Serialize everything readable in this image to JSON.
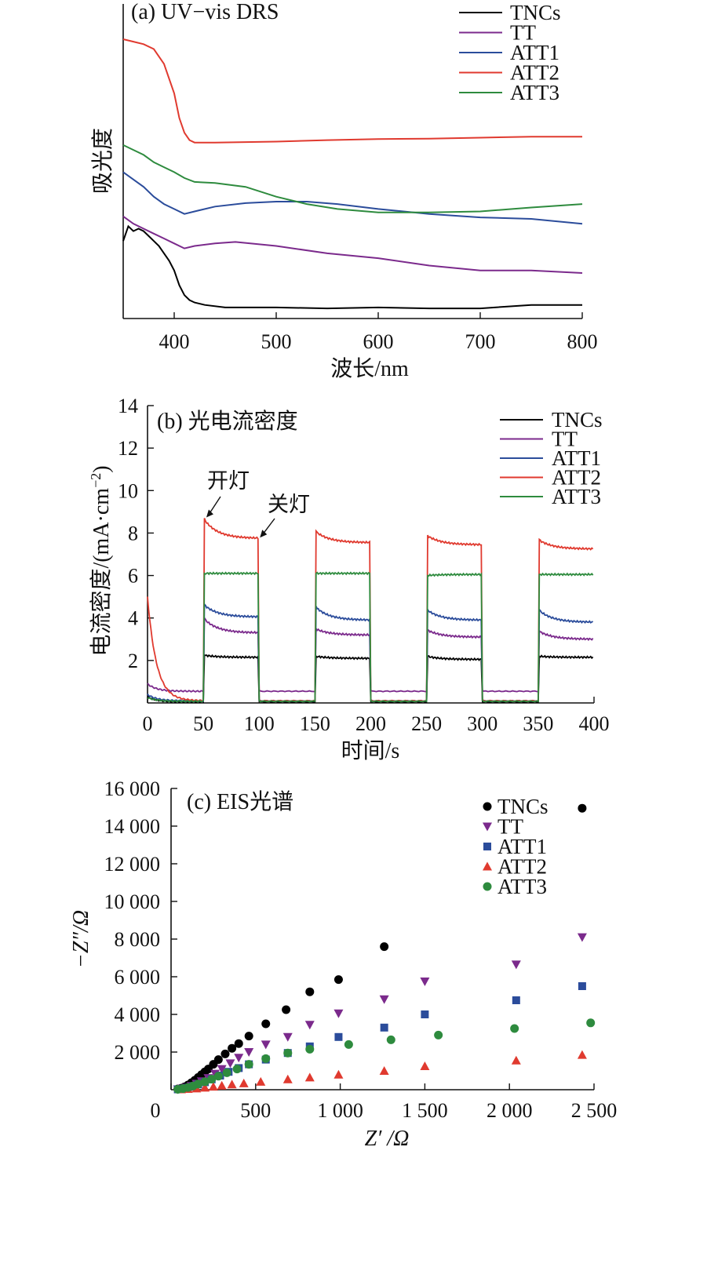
{
  "chart_data": [
    {
      "type": "line",
      "panel_title": "(a)  UV−vis DRS",
      "xlabel": "波长/nm",
      "ylabel": "吸光度",
      "xlim": [
        350,
        800
      ],
      "xticks": [
        400,
        500,
        600,
        700,
        800
      ],
      "y_ticks_shown": false,
      "legend_position": "top-right",
      "series": [
        {
          "name": "TNCs",
          "color": "#000000",
          "points": [
            [
              350,
              0.42
            ],
            [
              355,
              0.45
            ],
            [
              360,
              0.44
            ],
            [
              365,
              0.445
            ],
            [
              370,
              0.44
            ],
            [
              375,
              0.43
            ],
            [
              380,
              0.42
            ],
            [
              385,
              0.41
            ],
            [
              390,
              0.395
            ],
            [
              395,
              0.38
            ],
            [
              400,
              0.36
            ],
            [
              405,
              0.33
            ],
            [
              410,
              0.31
            ],
            [
              415,
              0.3
            ],
            [
              420,
              0.295
            ],
            [
              430,
              0.29
            ],
            [
              450,
              0.285
            ],
            [
              500,
              0.285
            ],
            [
              550,
              0.283
            ],
            [
              600,
              0.285
            ],
            [
              650,
              0.283
            ],
            [
              700,
              0.283
            ],
            [
              750,
              0.29
            ],
            [
              800,
              0.29
            ]
          ]
        },
        {
          "name": "TT",
          "color": "#7b2a8c",
          "points": [
            [
              350,
              0.47
            ],
            [
              360,
              0.455
            ],
            [
              370,
              0.445
            ],
            [
              380,
              0.435
            ],
            [
              390,
              0.425
            ],
            [
              400,
              0.415
            ],
            [
              410,
              0.405
            ],
            [
              420,
              0.41
            ],
            [
              440,
              0.415
            ],
            [
              460,
              0.418
            ],
            [
              500,
              0.41
            ],
            [
              550,
              0.395
            ],
            [
              600,
              0.385
            ],
            [
              650,
              0.37
            ],
            [
              700,
              0.36
            ],
            [
              750,
              0.36
            ],
            [
              800,
              0.355
            ]
          ]
        },
        {
          "name": "ATT1",
          "color": "#2b4c9b",
          "points": [
            [
              350,
              0.56
            ],
            [
              360,
              0.545
            ],
            [
              370,
              0.53
            ],
            [
              380,
              0.51
            ],
            [
              390,
              0.495
            ],
            [
              400,
              0.485
            ],
            [
              410,
              0.475
            ],
            [
              420,
              0.48
            ],
            [
              440,
              0.49
            ],
            [
              470,
              0.497
            ],
            [
              500,
              0.5
            ],
            [
              530,
              0.5
            ],
            [
              560,
              0.495
            ],
            [
              600,
              0.485
            ],
            [
              650,
              0.475
            ],
            [
              700,
              0.468
            ],
            [
              750,
              0.465
            ],
            [
              800,
              0.455
            ]
          ]
        },
        {
          "name": "ATT2",
          "color": "#e03a2f",
          "points": [
            [
              350,
              0.83
            ],
            [
              360,
              0.825
            ],
            [
              370,
              0.82
            ],
            [
              380,
              0.81
            ],
            [
              390,
              0.78
            ],
            [
              400,
              0.72
            ],
            [
              405,
              0.67
            ],
            [
              410,
              0.64
            ],
            [
              415,
              0.625
            ],
            [
              420,
              0.62
            ],
            [
              440,
              0.62
            ],
            [
              500,
              0.622
            ],
            [
              550,
              0.625
            ],
            [
              600,
              0.627
            ],
            [
              650,
              0.628
            ],
            [
              700,
              0.63
            ],
            [
              750,
              0.632
            ],
            [
              800,
              0.632
            ]
          ]
        },
        {
          "name": "ATT3",
          "color": "#2e8b3e",
          "points": [
            [
              350,
              0.615
            ],
            [
              360,
              0.605
            ],
            [
              370,
              0.595
            ],
            [
              380,
              0.58
            ],
            [
              390,
              0.57
            ],
            [
              400,
              0.56
            ],
            [
              410,
              0.548
            ],
            [
              420,
              0.54
            ],
            [
              440,
              0.538
            ],
            [
              470,
              0.53
            ],
            [
              500,
              0.51
            ],
            [
              530,
              0.495
            ],
            [
              560,
              0.485
            ],
            [
              600,
              0.478
            ],
            [
              650,
              0.478
            ],
            [
              700,
              0.48
            ],
            [
              750,
              0.488
            ],
            [
              800,
              0.495
            ]
          ]
        }
      ]
    },
    {
      "type": "line",
      "panel_title": "(b)  光电流密度",
      "xlabel": "时间/s",
      "ylabel": "电流密度/(mA·cm",
      "ylabel_sup": "−2",
      "ylabel_end": ")",
      "xlim": [
        0,
        400
      ],
      "ylim": [
        0,
        14
      ],
      "xticks": [
        0,
        50,
        100,
        150,
        200,
        250,
        300,
        350,
        400
      ],
      "yticks": [
        2,
        4,
        6,
        8,
        10,
        12,
        14
      ],
      "legend_position": "top-right",
      "annotations": [
        {
          "text": "开灯",
          "x": 52,
          "y": 8.7
        },
        {
          "text": "关灯",
          "x": 100,
          "y": 7.75
        }
      ],
      "light_on_intervals": [
        [
          50,
          100
        ],
        [
          150,
          200
        ],
        [
          250,
          300
        ],
        [
          350,
          400
        ]
      ],
      "series": [
        {
          "name": "TNCs",
          "color": "#000000",
          "dark_start": 0.3,
          "dark_level": 0.05,
          "on_peak": [
            2.25,
            2.2,
            2.2,
            2.2
          ],
          "on_end": [
            2.15,
            2.1,
            2.05,
            2.15
          ]
        },
        {
          "name": "TT",
          "color": "#7b2a8c",
          "dark_start": 0.9,
          "dark_level": 0.55,
          "on_peak": [
            4.0,
            3.5,
            3.45,
            3.4
          ],
          "on_end": [
            3.3,
            3.2,
            3.1,
            3.0
          ]
        },
        {
          "name": "ATT1",
          "color": "#2b4c9b",
          "dark_start": 0.4,
          "dark_level": 0.1,
          "on_peak": [
            4.65,
            4.55,
            4.4,
            4.4
          ],
          "on_end": [
            4.05,
            3.9,
            3.9,
            3.8
          ]
        },
        {
          "name": "ATT2",
          "color": "#e03a2f",
          "dark_start": 5.0,
          "dark_level": 0.1,
          "on_peak": [
            8.7,
            8.1,
            7.9,
            7.7
          ],
          "on_end": [
            7.75,
            7.55,
            7.45,
            7.25
          ]
        },
        {
          "name": "ATT3",
          "color": "#2e8b3e",
          "dark_start": 0.25,
          "dark_level": 0.08,
          "on_peak": [
            6.1,
            6.1,
            6.0,
            6.05
          ],
          "on_end": [
            6.1,
            6.1,
            6.05,
            6.05
          ]
        }
      ]
    },
    {
      "type": "scatter",
      "panel_title": "(c)  EIS光谱",
      "xlabel": "Z′ /Ω",
      "ylabel": "−Z″/Ω",
      "xlim": [
        0,
        2500
      ],
      "ylim": [
        0,
        16000
      ],
      "xticks": [
        0,
        500,
        1000,
        1500,
        2000,
        2500
      ],
      "xtick_labels": [
        "0",
        "500",
        "1 000",
        "1 500",
        "2 000",
        "2 500"
      ],
      "yticks": [
        2000,
        4000,
        6000,
        8000,
        10000,
        12000,
        14000,
        16000
      ],
      "ytick_labels": [
        "2 000",
        "4 000",
        "6 000",
        "8 000",
        "10 000",
        "12 000",
        "14 000",
        "16 000"
      ],
      "legend_position": "top-right",
      "series": [
        {
          "name": "TNCs",
          "color": "#000000",
          "marker": "circle",
          "points": [
            [
              40,
              40
            ],
            [
              60,
              80
            ],
            [
              80,
              150
            ],
            [
              100,
              250
            ],
            [
              120,
              370
            ],
            [
              140,
              500
            ],
            [
              160,
              650
            ],
            [
              180,
              800
            ],
            [
              200,
              950
            ],
            [
              220,
              1100
            ],
            [
              250,
              1350
            ],
            [
              280,
              1600
            ],
            [
              320,
              1900
            ],
            [
              360,
              2200
            ],
            [
              400,
              2450
            ],
            [
              460,
              2850
            ],
            [
              560,
              3500
            ],
            [
              680,
              4250
            ],
            [
              820,
              5200
            ],
            [
              990,
              5850
            ],
            [
              1260,
              7600
            ],
            [
              2430,
              14950
            ]
          ]
        },
        {
          "name": "TT",
          "color": "#7b2a8c",
          "marker": "triangle-down",
          "points": [
            [
              40,
              20
            ],
            [
              60,
              50
            ],
            [
              90,
              110
            ],
            [
              120,
              200
            ],
            [
              150,
              320
            ],
            [
              180,
              450
            ],
            [
              220,
              620
            ],
            [
              260,
              850
            ],
            [
              300,
              1100
            ],
            [
              350,
              1400
            ],
            [
              400,
              1700
            ],
            [
              460,
              2000
            ],
            [
              560,
              2400
            ],
            [
              690,
              2800
            ],
            [
              820,
              3450
            ],
            [
              990,
              4050
            ],
            [
              1260,
              4800
            ],
            [
              1500,
              5750
            ],
            [
              2040,
              6650
            ],
            [
              2430,
              8100
            ]
          ]
        },
        {
          "name": "ATT1",
          "color": "#2b4c9b",
          "marker": "square",
          "points": [
            [
              40,
              20
            ],
            [
              70,
              50
            ],
            [
              100,
              100
            ],
            [
              130,
              180
            ],
            [
              160,
              280
            ],
            [
              200,
              400
            ],
            [
              240,
              550
            ],
            [
              290,
              750
            ],
            [
              340,
              950
            ],
            [
              400,
              1150
            ],
            [
              460,
              1350
            ],
            [
              560,
              1600
            ],
            [
              690,
              1950
            ],
            [
              820,
              2300
            ],
            [
              990,
              2800
            ],
            [
              1260,
              3300
            ],
            [
              1500,
              4000
            ],
            [
              2040,
              4750
            ],
            [
              2430,
              5500
            ]
          ]
        },
        {
          "name": "ATT2",
          "color": "#e03a2f",
          "marker": "triangle-up",
          "points": [
            [
              60,
              20
            ],
            [
              100,
              40
            ],
            [
              150,
              70
            ],
            [
              200,
              110
            ],
            [
              250,
              160
            ],
            [
              300,
              220
            ],
            [
              360,
              280
            ],
            [
              430,
              340
            ],
            [
              530,
              420
            ],
            [
              690,
              550
            ],
            [
              820,
              650
            ],
            [
              990,
              800
            ],
            [
              1260,
              1000
            ],
            [
              1500,
              1250
            ],
            [
              2040,
              1550
            ],
            [
              2430,
              1850
            ]
          ]
        },
        {
          "name": "ATT3",
          "color": "#2e8b3e",
          "marker": "circle",
          "points": [
            [
              40,
              20
            ],
            [
              70,
              60
            ],
            [
              100,
              120
            ],
            [
              130,
              200
            ],
            [
              160,
              300
            ],
            [
              200,
              420
            ],
            [
              240,
              560
            ],
            [
              280,
              720
            ],
            [
              330,
              900
            ],
            [
              390,
              1100
            ],
            [
              460,
              1350
            ],
            [
              560,
              1650
            ],
            [
              690,
              1950
            ],
            [
              820,
              2150
            ],
            [
              1050,
              2400
            ],
            [
              1300,
              2650
            ],
            [
              1580,
              2900
            ],
            [
              2030,
              3250
            ],
            [
              2480,
              3550
            ]
          ]
        }
      ]
    }
  ]
}
